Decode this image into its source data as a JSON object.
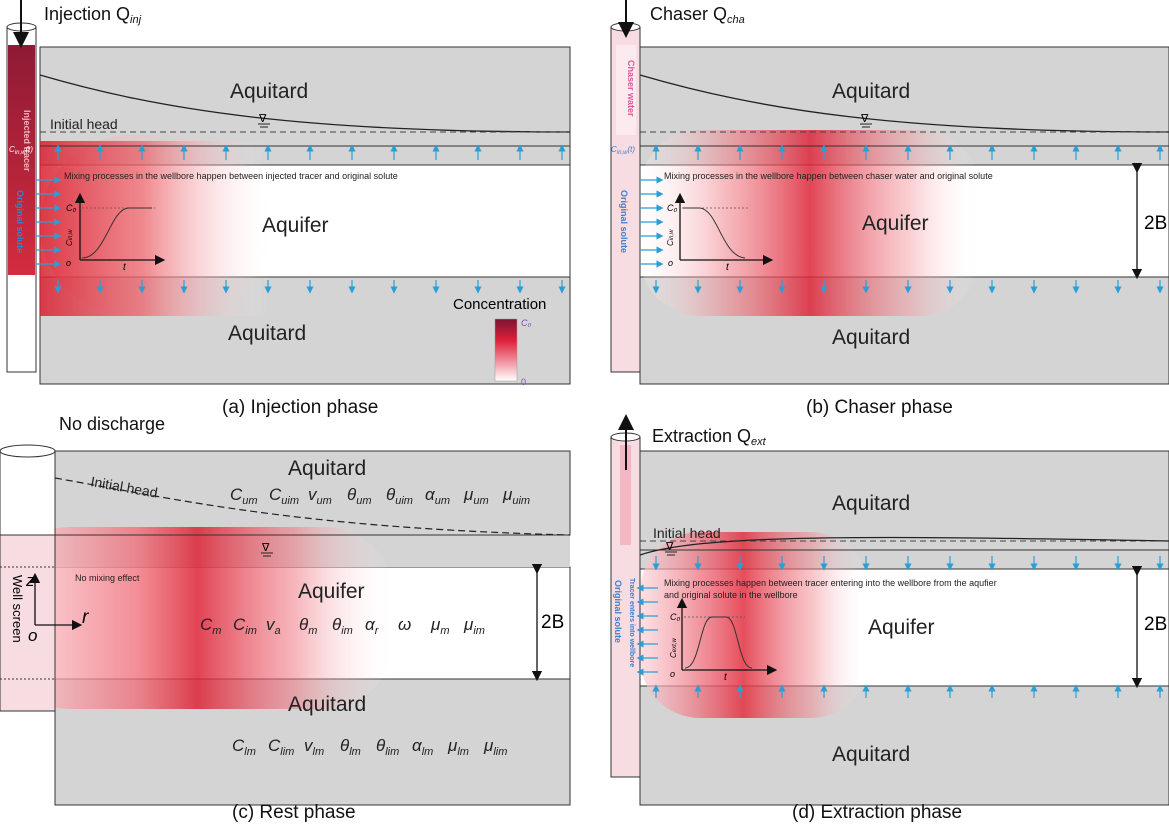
{
  "panels": {
    "a": {
      "caption": "(a) Injection phase",
      "title": "Injection Q",
      "title_sub": "inj",
      "upper_layer": "Aquitard",
      "aquifer": "Aquifer",
      "lower_layer": "Aquitard",
      "head_label": "Initial head",
      "mixing_note": "Mixing processes in the wellbore happen between injected tracer and original solute",
      "well_top_label": "Injected tracer",
      "well_screen_label": "Original solute",
      "cin_label": "C",
      "cin_sub": "in,w",
      "cin_suffix": "(t)",
      "inset_y_label": "C",
      "inset_y_sub": "in,w",
      "inset_c0": "C₀",
      "inset_origin": "o",
      "inset_x": "t",
      "legend_title": "Concentration",
      "legend_max": "C₀",
      "legend_min": "0"
    },
    "b": {
      "caption": "(b) Chaser phase",
      "title": "Chaser Q",
      "title_sub": "cha",
      "upper_layer": "Aquitard",
      "aquifer": "Aquifer",
      "lower_layer": "Aquitard",
      "mixing_note": "Mixing processes in the wellbore happen between chaser water and original solute",
      "well_top_label": "Chaser water",
      "well_screen_label": "Original solute",
      "cin_label": "C",
      "cin_sub": "in,w",
      "cin_suffix": "(t)",
      "inset_y_label": "C",
      "inset_y_sub": "in,w",
      "inset_c0": "C₀",
      "inset_origin": "o",
      "inset_x": "t",
      "thickness": "2B"
    },
    "c": {
      "caption": "(c) Rest phase",
      "title": "No discharge",
      "upper_layer": "Aquitard",
      "aquifer": "Aquifer",
      "lower_layer": "Aquitard",
      "head_label": "Initial head",
      "mixing_note": "No mixing effect",
      "well_screen_label": "Well screen",
      "axis_z": "z",
      "axis_r": "r",
      "axis_o": "o",
      "thickness": "2B",
      "upper_params": [
        "C_um",
        "C_uim",
        "v_um",
        "θ_um",
        "θ_uim",
        "α_um",
        "μ_um",
        "μ_uim"
      ],
      "aquifer_params": [
        "C_m",
        "C_im",
        "v_a",
        "θ_m",
        "θ_im",
        "α_r",
        "ω",
        "μ_m",
        "μ_im"
      ],
      "lower_params": [
        "C_lm",
        "C_lim",
        "v_lm",
        "θ_lm",
        "θ_lim",
        "α_lm",
        "μ_lm",
        "μ_lim"
      ]
    },
    "d": {
      "caption": "(d) Extraction phase",
      "title": "Extraction Q",
      "title_sub": "ext",
      "upper_layer": "Aquitard",
      "aquifer": "Aquifer",
      "lower_layer": "Aquitard",
      "head_label": "Initial head",
      "mixing_note_1": "Mixing processes happen between tracer entering into the wellbore from the aqufier",
      "mixing_note_2": "and original solute in the wellbore",
      "well_screen_label": "Original solute",
      "well_entry_label": "Tracer enters into wellbore",
      "inset_y_label": "C",
      "inset_y_sub": "ext,w",
      "inset_c0": "C₀",
      "inset_origin": "o",
      "inset_x": "t",
      "thickness": "2B"
    }
  },
  "colors": {
    "aquitard": "#d4d4d4",
    "plume_core": "#e0203a",
    "flow_arrow": "#2a9fd6",
    "well_tracer": "#b8233a",
    "well_light": "#f4c6d0"
  }
}
